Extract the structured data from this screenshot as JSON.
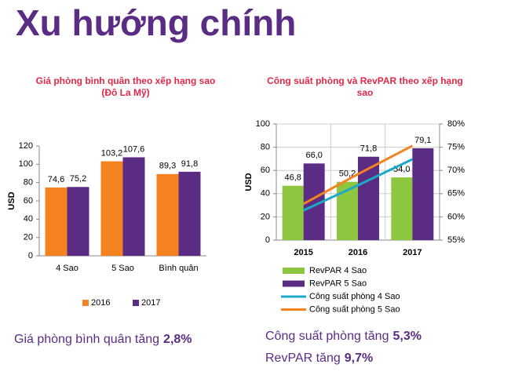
{
  "title": "Xu hướng chính",
  "chart_data": [
    {
      "type": "bar",
      "title": "Giá phòng bình quân theo xếp hạng sao",
      "subtitle": "(Đô La Mỹ)",
      "y_label": "USD",
      "categories": [
        "4 Sao",
        "5 Sao",
        "Bình quân"
      ],
      "series": [
        {
          "name": "2016",
          "color": "#f58220",
          "values": [
            74.6,
            103.2,
            89.3
          ],
          "value_labels": [
            "74,6",
            "103,2",
            "89,3"
          ]
        },
        {
          "name": "2017",
          "color": "#5b2c83",
          "values": [
            75.2,
            107.6,
            91.8
          ],
          "value_labels": [
            "75,2",
            "107,6",
            "91,8"
          ]
        }
      ],
      "ylim": [
        0,
        120
      ],
      "yticks": [
        0,
        20,
        40,
        60,
        80,
        100,
        120
      ],
      "grid": false,
      "legend": "bottom"
    },
    {
      "type": "bar-line",
      "title": "Công suất phòng và RevPAR theo xếp hạng sao",
      "y_label": "USD",
      "categories": [
        "2015",
        "2016",
        "2017"
      ],
      "series": [
        {
          "name": "RevPAR 4 Sao",
          "type": "bar",
          "color": "#8dc63f",
          "values": [
            46.8,
            50.2,
            54.0
          ],
          "value_labels": [
            "46,8",
            "50,2",
            "54,0"
          ]
        },
        {
          "name": "RevPAR 5 Sao",
          "type": "bar",
          "color": "#5b2c83",
          "values": [
            66.0,
            71.8,
            79.1
          ],
          "value_labels": [
            "66,0",
            "71,8",
            "79,1"
          ]
        },
        {
          "name": "Công suất phòng 4 Sao",
          "type": "line",
          "axis": "y2",
          "color": "#1ba9c9",
          "values": [
            61.4,
            66.8,
            72.4
          ]
        },
        {
          "name": "Công suất phòng 5 Sao",
          "type": "line",
          "axis": "y2",
          "color": "#f58220",
          "values": [
            62.8,
            69.2,
            75.3
          ]
        }
      ],
      "ylim": [
        0,
        100
      ],
      "yticks": [
        0,
        20,
        40,
        60,
        80,
        100
      ],
      "y2lim": [
        55,
        80
      ],
      "y2ticks": [
        {
          "value": 55,
          "label": "55%"
        },
        {
          "value": 60,
          "label": "60%"
        },
        {
          "value": 65,
          "label": "65%"
        },
        {
          "value": 70,
          "label": "70%"
        },
        {
          "value": 75,
          "label": "75%"
        },
        {
          "value": 80,
          "label": "80%"
        }
      ],
      "grid": true,
      "legend": "bottom"
    }
  ],
  "notes": [
    {
      "text": "Giá phòng bình quân tăng",
      "value": "2,8%"
    },
    {
      "text": "Công suất phòng tăng",
      "value": "5,3%"
    },
    {
      "text": "RevPAR tăng",
      "value": "9,7%"
    }
  ]
}
